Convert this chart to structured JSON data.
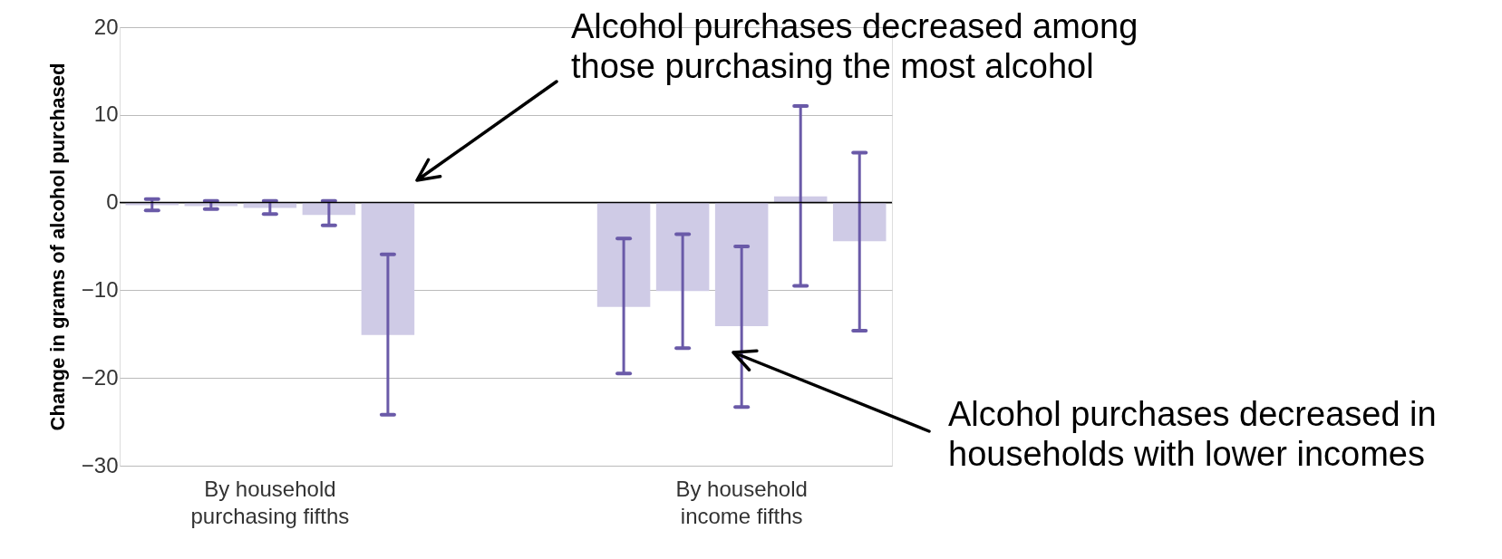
{
  "chart_data": {
    "type": "bar",
    "ylabel": "Change in grams of alcohol purchased",
    "categories": [
      null,
      null,
      "By household\npurchasing fifths",
      null,
      null,
      null,
      null,
      null,
      null,
      null,
      "By household\nincome fifths",
      null,
      null
    ],
    "series": [
      {
        "color": "#cfcbe6",
        "values": [
          -0.3,
          -0.4,
          -0.6,
          -1.4,
          -15.1,
          null,
          null,
          null,
          -11.9,
          -10.1,
          -14.1,
          0.7,
          -4.4
        ],
        "errors": [
          [
            -0.9,
            0.4
          ],
          [
            -0.75,
            0.2
          ],
          [
            -1.3,
            0.2
          ],
          [
            -2.6,
            0.2
          ],
          [
            -24.2,
            -5.9
          ],
          null,
          null,
          null,
          [
            -19.5,
            -4.1
          ],
          [
            -16.6,
            -3.6
          ],
          [
            -23.3,
            -5.0
          ],
          [
            -9.5,
            11.0
          ],
          [
            -14.6,
            5.7
          ]
        ]
      }
    ],
    "ylim": [
      -30,
      20
    ],
    "yticks": [
      -30,
      -20,
      -10,
      0,
      10,
      20
    ],
    "grid": "y",
    "ref_lines": [
      {
        "axis": "y",
        "value": 0,
        "color": "#000000"
      }
    ],
    "annotations": [
      "Alcohol purchases decreased among\nthose purchasing the most alcohol",
      "Alcohol purchases decreased in\nhouseholds with lower incomes"
    ]
  }
}
